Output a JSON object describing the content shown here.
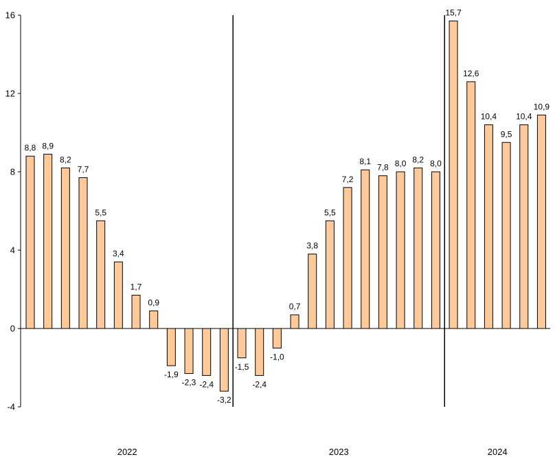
{
  "chart_data": {
    "type": "bar",
    "series": [
      {
        "values": [
          8.8,
          8.9,
          8.2,
          7.7,
          5.5,
          3.4,
          1.7,
          0.9,
          -1.9,
          -2.3,
          -2.4,
          -3.2,
          -1.5,
          -2.4,
          -1.0,
          0.7,
          3.8,
          5.5,
          7.2,
          8.1,
          7.8,
          8.0,
          8.2,
          8.0,
          15.7,
          12.6,
          10.4,
          9.5,
          10.4,
          10.9
        ],
        "labels": [
          "8,8",
          "8,9",
          "8,2",
          "7,7",
          "5,5",
          "3,4",
          "1,7",
          "0,9",
          "-1,9",
          "-2,3",
          "-2,4",
          "-3,2",
          "-1,5",
          "-2,4",
          "-1,0",
          "0,7",
          "3,8",
          "5,5",
          "7,2",
          "8,1",
          "7,8",
          "8,0",
          "8,2",
          "8,0",
          "15,7",
          "12,6",
          "10,4",
          "9,5",
          "10,4",
          "10,9"
        ]
      }
    ],
    "ylim": [
      -4,
      16
    ],
    "yticks": [
      -4,
      0,
      4,
      8,
      12,
      16
    ],
    "ytick_labels": [
      "-4",
      "0",
      "4",
      "8",
      "12",
      "16"
    ],
    "year_groups": [
      {
        "label": "2022",
        "start": 0,
        "end": 11
      },
      {
        "label": "2023",
        "start": 12,
        "end": 23
      },
      {
        "label": "2024",
        "start": 24,
        "end": 29
      }
    ],
    "bar_color": "#ffc99a",
    "bar_edge_color": "#000000",
    "grid": false,
    "legend": "none"
  }
}
